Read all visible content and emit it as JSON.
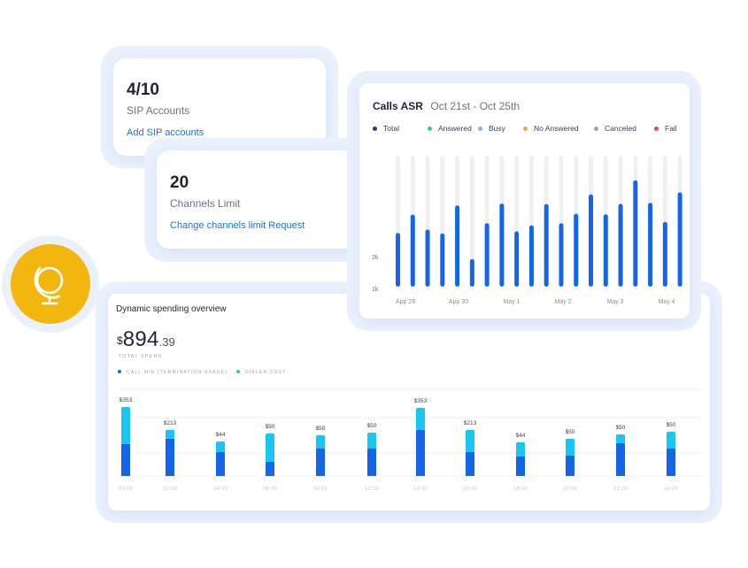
{
  "sip": {
    "value": "4/10",
    "label": "SIP Accounts",
    "link": "Add SIP accounts"
  },
  "channels": {
    "value": "20",
    "label": "Channels Limit",
    "link": "Change channels limit Request"
  },
  "globe": {
    "icon": "globe-icon",
    "color": "#f2b60f"
  },
  "asr": {
    "title": "Calls ASR",
    "date_range": "Oct 21st - Oct 25th",
    "legend": [
      {
        "label": "Total",
        "color": "#2d3b63"
      },
      {
        "label": "Answered",
        "color": "#2fd08f"
      },
      {
        "label": "Busy",
        "color": "#7fb6ef"
      },
      {
        "label": "No Answered",
        "color": "#f4a63a"
      },
      {
        "label": "Canceled",
        "color": "#9aa6b8"
      },
      {
        "label": "Fail",
        "color": "#e8455d"
      }
    ]
  },
  "spending": {
    "title": "Dynamic spending overview",
    "currency": "$",
    "amount_int": "894",
    "amount_dec": ".39",
    "total_label": "TOTAL SPEND",
    "legend": [
      {
        "label": "CALL MIN (TERMINATION USAGE)",
        "color": "#1565e8"
      },
      {
        "label": "DIALER COST",
        "color": "#19c6f2"
      }
    ]
  },
  "chart_data": [
    {
      "type": "bar",
      "title": "Calls ASR",
      "ylim": [
        0,
        5000
      ],
      "y_ticks": [
        "1k",
        "2k"
      ],
      "x_tick_labels": [
        "App 29",
        "App 30",
        "May 1",
        "May 2",
        "May 3",
        "May 4"
      ],
      "grid": false,
      "background_max": 5000,
      "values": [
        2050,
        2750,
        2180,
        2030,
        3100,
        1050,
        2420,
        3170,
        2110,
        2340,
        3150,
        2420,
        2780,
        3520,
        2760,
        3160,
        4060,
        3200,
        2470,
        3600
      ],
      "colors": {
        "bar": "#1565e8",
        "track": "#eef0f4"
      }
    },
    {
      "type": "bar",
      "title": "Dynamic spending overview",
      "stacked": true,
      "categories": [
        "00:00",
        "02:00",
        "04:00",
        "06:00",
        "08:00",
        "12:00",
        "14:00",
        "16:00",
        "18:00",
        "20:00",
        "22:00",
        "24:00"
      ],
      "labels": [
        "$353",
        "$213",
        "$44",
        "$50",
        "$50",
        "$50",
        "$353",
        "$213",
        "$44",
        "$50",
        "$50",
        "$50"
      ],
      "series": [
        {
          "name": "CALL MIN (TERMINATION USAGE)",
          "values": [
            36,
            42,
            27,
            16,
            31,
            31,
            52,
            27,
            22,
            23,
            37,
            31
          ],
          "color": "#1565e8"
        },
        {
          "name": "DIALER COST",
          "values": [
            42,
            10,
            12,
            32,
            15,
            18,
            25,
            25,
            16,
            19,
            10,
            19
          ],
          "color": "#19c6f2"
        }
      ],
      "ylim": [
        0,
        100
      ],
      "grid": true
    }
  ]
}
